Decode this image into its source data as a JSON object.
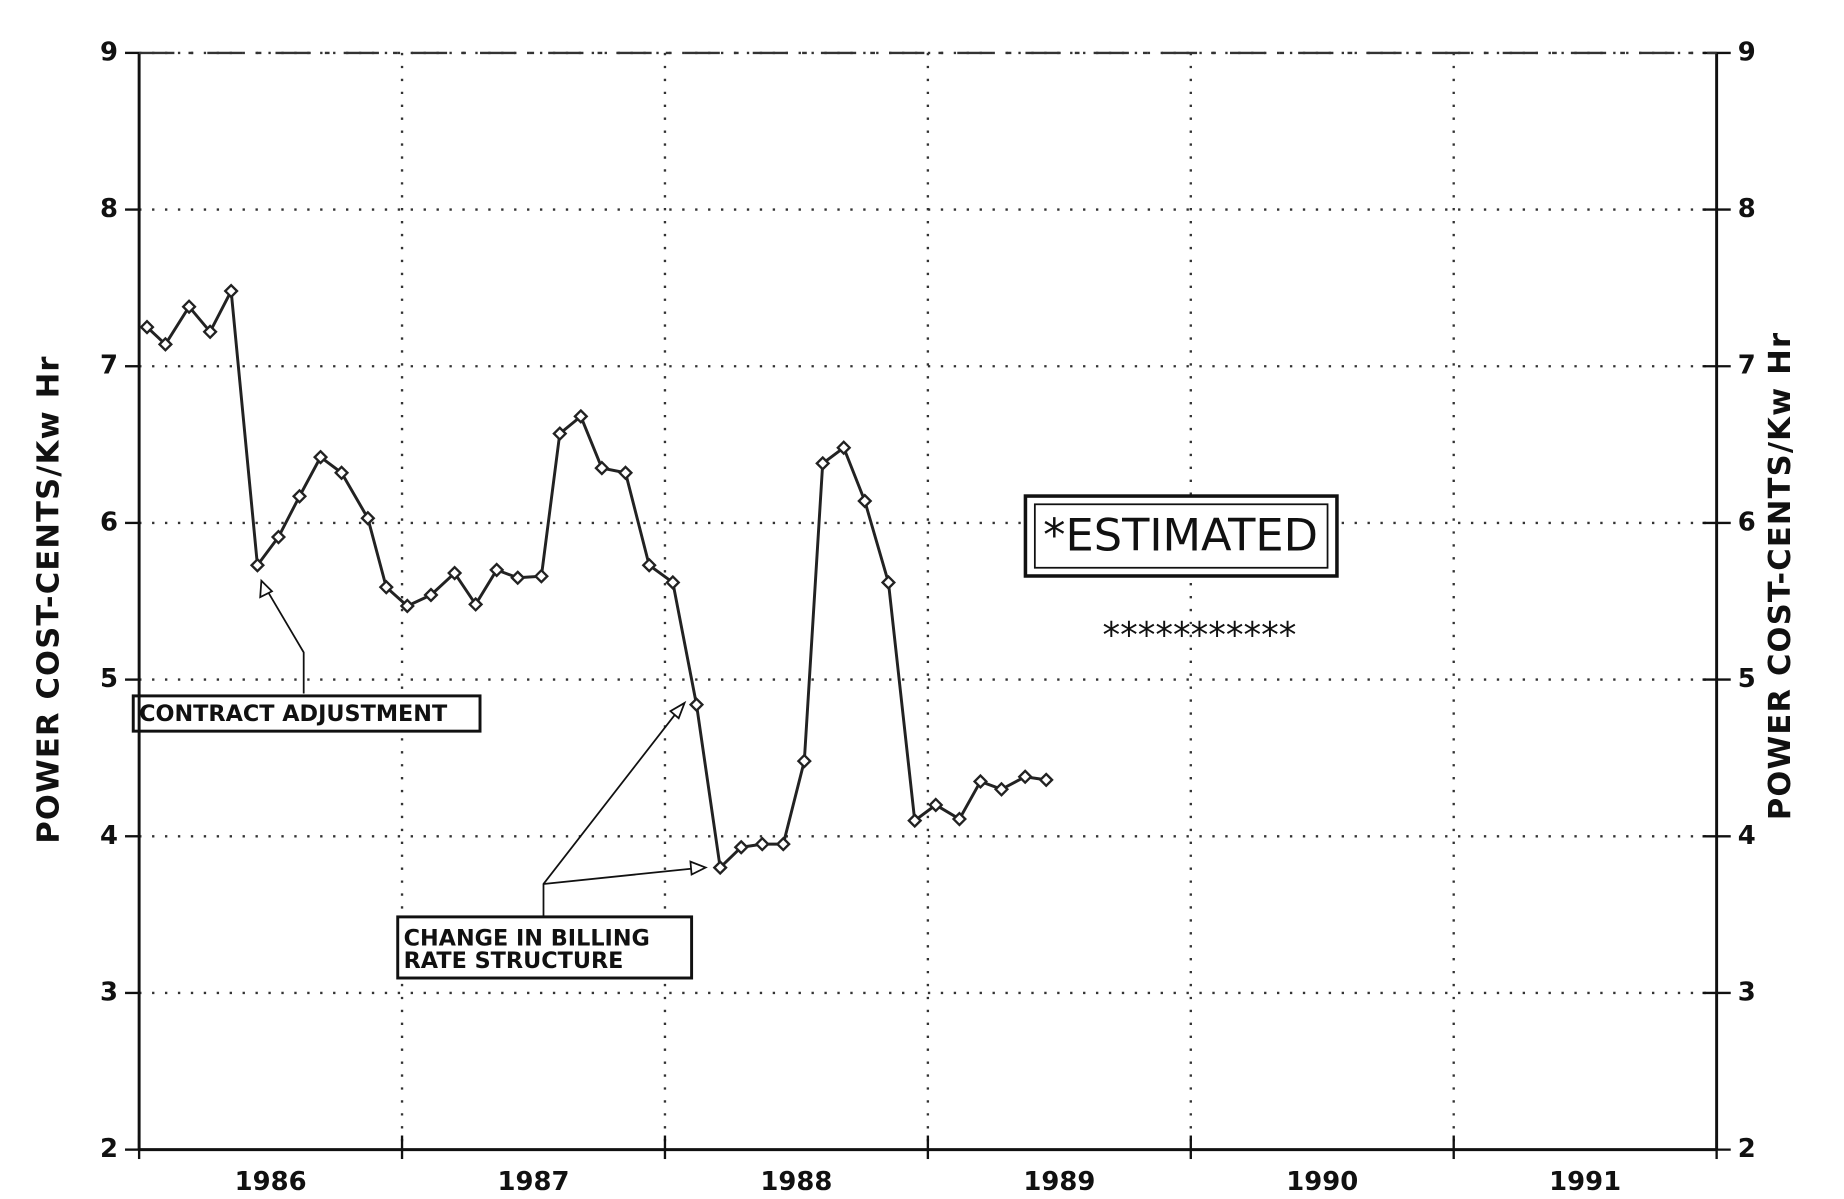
{
  "chart_data": {
    "type": "line",
    "y_label": "POWER COST-CENTS/Kw Hr",
    "y2_label": "POWER COST-CENTS/Kw Hr",
    "xlim": [
      1986,
      1992
    ],
    "xticks": [
      1986,
      1987,
      1988,
      1989,
      1990,
      1991,
      1992
    ],
    "year_labels": [
      "1986",
      "1987",
      "1988",
      "1989",
      "1990",
      "1991"
    ],
    "ylim": [
      2,
      9
    ],
    "yticks": [
      2,
      3,
      4,
      5,
      6,
      7,
      8,
      9
    ],
    "y2lim": [
      2,
      9
    ],
    "y2ticks": [
      2,
      3,
      4,
      5,
      6,
      7,
      8,
      9
    ],
    "grid": true,
    "series": [
      {
        "color": "#222222",
        "x": [
          1986.03,
          1986.1,
          1986.19,
          1986.27,
          1986.35,
          1986.45,
          1986.53,
          1986.61,
          1986.69,
          1986.77,
          1986.87,
          1986.94,
          1987.02,
          1987.11,
          1987.2,
          1987.28,
          1987.36,
          1987.44,
          1987.53,
          1987.6,
          1987.68,
          1987.76,
          1987.85,
          1987.94,
          1988.03,
          1988.12,
          1988.21,
          1988.29,
          1988.37,
          1988.45,
          1988.53,
          1988.6,
          1988.68,
          1988.76,
          1988.85,
          1988.95,
          1989.03,
          1989.12,
          1989.2,
          1989.28,
          1989.37,
          1989.45
        ],
        "values": [
          7.25,
          7.14,
          7.38,
          7.22,
          7.48,
          5.73,
          5.91,
          6.17,
          6.42,
          6.32,
          6.03,
          5.59,
          5.47,
          5.54,
          5.68,
          5.48,
          5.7,
          5.65,
          5.66,
          6.57,
          6.68,
          6.35,
          6.32,
          5.73,
          5.62,
          4.84,
          3.8,
          3.93,
          3.95,
          3.95,
          4.48,
          6.38,
          6.48,
          6.14,
          5.62,
          4.1,
          4.2,
          4.11,
          4.35,
          4.3,
          4.38,
          4.36
        ]
      }
    ],
    "annotations": {
      "contract": "CONTRACT ADJUSTMENT",
      "billing": [
        "CHANGE IN BILLING",
        "RATE STRUCTURE"
      ],
      "estimated": "*ESTIMATED",
      "stars": "***********"
    }
  }
}
